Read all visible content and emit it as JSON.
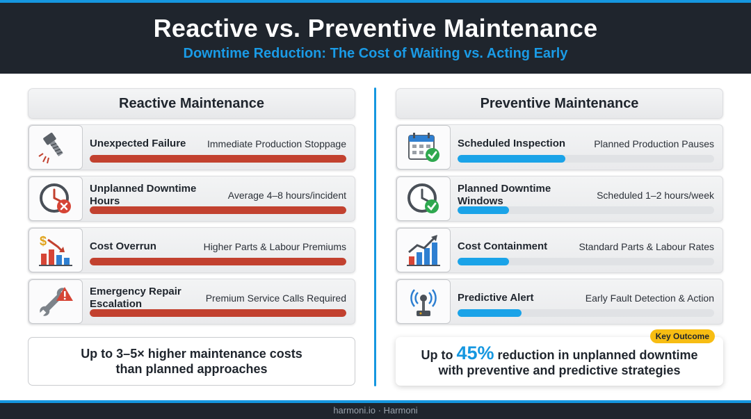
{
  "header": {
    "title": "Reactive vs. Preventive Maintenance",
    "subtitle": "Downtime Reduction: The Cost of Waiting vs. Acting Early"
  },
  "reactive": {
    "heading": "Reactive Maintenance",
    "items": [
      {
        "label": "Unexpected Failure",
        "desc": "Immediate Production Stoppage",
        "icon": "broken-bolt-icon",
        "level": 1.0
      },
      {
        "label": "Unplanned Downtime Hours",
        "desc": "Average 4–8 hours/incident",
        "icon": "clock-x-icon",
        "level": 1.0
      },
      {
        "label": "Cost Overrun",
        "desc": "Higher Parts & Labour Premiums",
        "icon": "rising-cost-chart-icon",
        "level": 1.0
      },
      {
        "label": "Emergency Repair Escalation",
        "desc": "Premium Service Calls Required",
        "icon": "wrench-warning-icon",
        "level": 1.0
      }
    ],
    "summary_line1": "Up to 3–5× higher maintenance costs",
    "summary_line2": "than planned approaches"
  },
  "preventive": {
    "heading": "Preventive Maintenance",
    "items": [
      {
        "label": "Scheduled Inspection",
        "desc": "Planned Production Pauses",
        "icon": "calendar-check-icon",
        "level": 0.42
      },
      {
        "label": "Planned Downtime Windows",
        "desc": "Scheduled 1–2 hours/week",
        "icon": "clock-check-icon",
        "level": 0.2
      },
      {
        "label": "Cost Containment",
        "desc": "Standard Parts & Labour Rates",
        "icon": "growth-chart-icon",
        "level": 0.2
      },
      {
        "label": "Predictive Alert",
        "desc": "Early Fault Detection & Action",
        "icon": "sensor-signal-icon",
        "level": 0.25
      }
    ],
    "badge": "Key Outcome",
    "summary_pre": "Up to",
    "summary_big": "45%",
    "summary_post": "reduction in unplanned downtime",
    "summary_line2": "with preventive and predictive strategies"
  },
  "footer": {
    "text": "harmoni.io · Harmoni"
  },
  "colors": {
    "reactive_bar": "#c2412f",
    "preventive_bar": "#1aa3e8",
    "accent": "#1597e0",
    "badge": "#f7bd13",
    "header_bg": "#1f252d"
  }
}
